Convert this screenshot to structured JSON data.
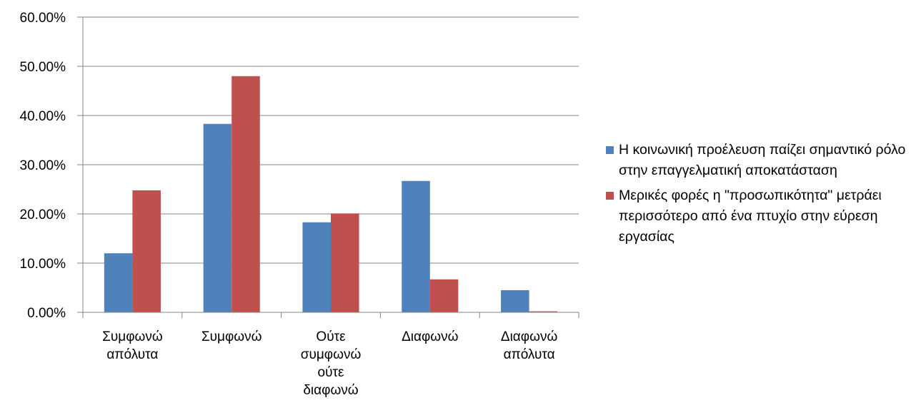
{
  "chart_data": {
    "type": "bar",
    "categories": [
      "Συμφωνώ απόλυτα",
      "Συμφωνώ",
      "Ούτε συμφωνώ ούτε διαφωνώ",
      "Διαφωνώ",
      "Διαφωνώ απόλυτα"
    ],
    "series": [
      {
        "name": "Η κοινωνική προέλευση παίζει σημαντικό ρόλο στην επαγγελματική αποκατάσταση",
        "color": "#4f81bd",
        "values": [
          12.0,
          38.3,
          18.3,
          26.7,
          4.5
        ]
      },
      {
        "name": "Μερικές φορές η \"προσωπικότητα\" μετράει περισσότερο από ένα πτυχίο στην εύρεση εργασίας",
        "color": "#c0504d",
        "values": [
          24.8,
          48.0,
          20.1,
          6.7,
          0.2
        ]
      }
    ],
    "ylim": [
      0,
      60
    ],
    "yticks": [
      {
        "value": 0,
        "label": "0.00%"
      },
      {
        "value": 10,
        "label": "10.00%"
      },
      {
        "value": 20,
        "label": "20.00%"
      },
      {
        "value": 30,
        "label": "30.00%"
      },
      {
        "value": 40,
        "label": "40.00%"
      },
      {
        "value": 50,
        "label": "50.00%"
      },
      {
        "value": 60,
        "label": "60.00%"
      }
    ],
    "grid": true,
    "legend": "right"
  }
}
